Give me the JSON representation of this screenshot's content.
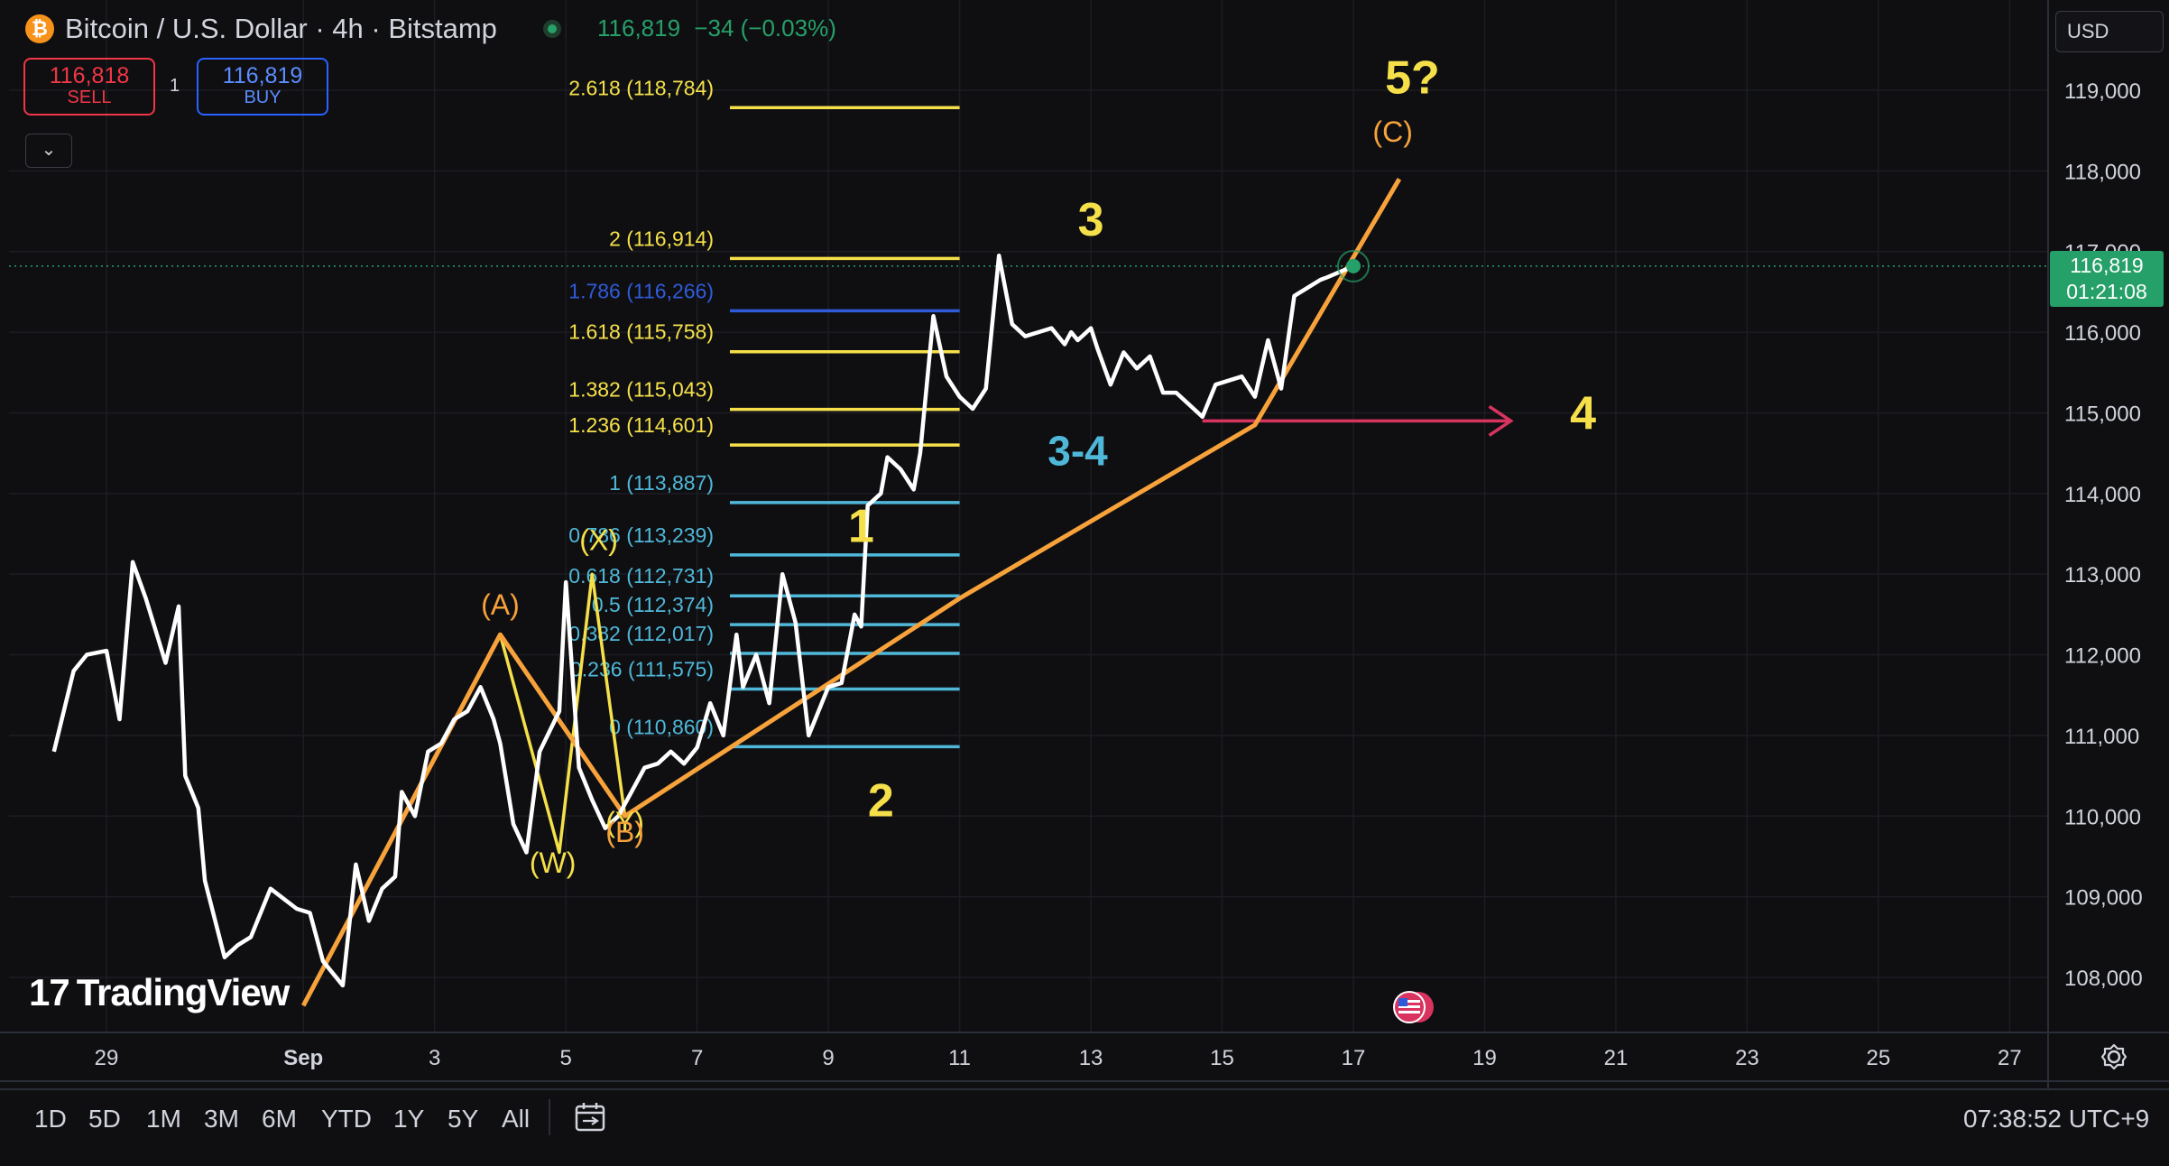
{
  "header": {
    "symbol_title": "Bitcoin / U.S. Dollar · 4h · Bitstamp",
    "last_price": "116,819",
    "change": "−34 (−0.03%)",
    "logo_glyph": "₿"
  },
  "trade": {
    "sell_price": "116,818",
    "sell_label": "SELL",
    "quantity": "1",
    "buy_price": "116,819",
    "buy_label": "BUY",
    "collapse_glyph": "⌄"
  },
  "currency": "USD",
  "price_tag": {
    "price": "116,819",
    "countdown": "01:21:08"
  },
  "colors": {
    "background": "#0f0f12",
    "price_line": "#ffffff",
    "orange": "#f7a23a",
    "yellow": "#f5e04a",
    "cyan": "#4fb8d8",
    "blue": "#2f5bd8",
    "magenta": "#d8345f",
    "green": "#26a069"
  },
  "chart_data": {
    "type": "line",
    "title": "Bitcoin / U.S. Dollar · 4h · Bitstamp",
    "ylim": [
      107550,
      119600
    ],
    "y_ticks": [
      108000,
      109000,
      110000,
      111000,
      112000,
      113000,
      114000,
      115000,
      116000,
      117000,
      118000,
      119000
    ],
    "y_tick_labels": [
      "108,000",
      "109,000",
      "110,000",
      "111,000",
      "112,000",
      "113,000",
      "114,000",
      "115,000",
      "116,000",
      "117,000",
      "118,000",
      "119,000"
    ],
    "x_ticks": [
      29,
      32,
      34,
      36,
      38,
      40,
      42,
      44,
      46,
      48,
      50,
      52,
      54,
      56,
      58
    ],
    "x_tick_labels": [
      "29",
      "Sep",
      "3",
      "5",
      "7",
      "9",
      "11",
      "13",
      "15",
      "17",
      "19",
      "21",
      "23",
      "25",
      "27"
    ],
    "xlim": [
      28.2,
      59.2
    ],
    "series": [
      {
        "role": "price",
        "x": [
          28.2,
          28.5,
          28.7,
          29.0,
          29.2,
          29.4,
          29.6,
          29.9,
          30.1,
          30.2,
          30.4,
          30.5,
          30.8,
          31.0,
          31.2,
          31.5,
          31.9,
          32.1,
          32.3,
          32.6,
          32.8,
          33.0,
          33.2,
          33.4,
          33.5,
          33.7,
          33.9,
          34.1,
          34.3,
          34.5,
          34.7,
          34.9,
          35.0,
          35.2,
          35.4,
          35.6,
          35.9,
          36.0,
          36.2,
          36.4,
          36.6,
          36.8,
          37.0,
          37.2,
          37.4,
          37.6,
          37.8,
          38.0,
          38.2,
          38.4,
          38.6,
          38.7,
          38.9,
          39.1,
          39.3,
          39.5,
          39.7,
          39.9,
          40.0,
          40.2,
          40.4,
          40.5,
          40.6,
          40.8,
          40.9,
          41.1,
          41.3,
          41.4,
          41.6,
          41.8,
          42.0,
          42.2,
          42.4,
          42.6,
          42.8,
          43.0,
          43.2,
          43.4,
          43.6,
          43.7,
          43.8,
          44.0,
          44.1,
          44.3,
          44.5,
          44.7,
          44.9,
          45.1,
          45.3,
          45.5,
          45.7,
          45.9,
          46.1,
          46.3,
          46.5,
          46.7,
          46.9,
          47.1,
          47.3,
          47.5,
          47.6,
          47.8,
          48.0
        ],
        "y": [
          110800,
          111800,
          112000,
          112050,
          111200,
          113150,
          112700,
          111900,
          112600,
          110500,
          110100,
          109200,
          108250,
          108400,
          108500,
          109100,
          108850,
          108800,
          108200,
          107900,
          109400,
          108700,
          109100,
          109250,
          110300,
          110000,
          110800,
          110900,
          111200,
          111300,
          111600,
          111200,
          110900,
          109900,
          109550,
          110800,
          111300,
          112900,
          110600,
          110200,
          109850,
          110000,
          110300,
          110600,
          110650,
          110800,
          110650,
          110850,
          111400,
          111000,
          112250,
          111600,
          112000,
          111400,
          113000,
          112400,
          111000,
          111400,
          111600,
          111650,
          112500,
          112350,
          113850,
          114000,
          114450,
          114300,
          114050,
          114500,
          116200,
          115450,
          115200,
          115050,
          115300,
          116950,
          116100,
          115950,
          116000,
          116050,
          115850,
          116000,
          115900,
          116050,
          115800,
          115350,
          115750,
          115550,
          115700,
          115250,
          115250,
          115100,
          114950,
          115350,
          115400,
          115450,
          115200,
          115900,
          115300,
          116450,
          116550,
          116650,
          116680,
          116750,
          116819
        ]
      },
      {
        "role": "wave-wxy",
        "x": [
          35.0,
          35.9,
          36.4,
          36.9
        ],
        "y": [
          112250,
          109550,
          113000,
          110000
        ]
      },
      {
        "role": "wave-abc-and-1-5",
        "x": [
          32.0,
          35.0,
          36.9,
          42.0,
          46.5,
          48.7
        ],
        "y": [
          107650,
          112250,
          110000,
          112700,
          114850,
          117900
        ]
      }
    ],
    "fibonacci_extension": {
      "x_range": [
        38.5,
        42.0
      ],
      "levels": [
        {
          "ratio": "2.618",
          "price": 118784,
          "label": "2.618 (118,784)",
          "color": "#f5e04a"
        },
        {
          "ratio": "2",
          "price": 116914,
          "label": "2 (116,914)",
          "color": "#f5e04a"
        },
        {
          "ratio": "1.786",
          "price": 116266,
          "label": "1.786 (116,266)",
          "color": "#2f5bd8"
        },
        {
          "ratio": "1.618",
          "price": 115758,
          "label": "1.618 (115,758)",
          "color": "#f5e04a"
        },
        {
          "ratio": "1.382",
          "price": 115043,
          "label": "1.382 (115,043)",
          "color": "#f5e04a"
        },
        {
          "ratio": "1.236",
          "price": 114601,
          "label": "1.236 (114,601)",
          "color": "#f5e04a"
        },
        {
          "ratio": "1",
          "price": 113887,
          "label": "1 (113,887)",
          "color": "#4fb8d8"
        },
        {
          "ratio": "0.786",
          "price": 113239,
          "label": "0.786 (113,239)",
          "color": "#4fb8d8"
        },
        {
          "ratio": "0.618",
          "price": 112731,
          "label": "0.618 (112,731)",
          "color": "#4fb8d8"
        },
        {
          "ratio": "0.5",
          "price": 112374,
          "label": "0.5 (112,374)",
          "color": "#4fb8d8"
        },
        {
          "ratio": "0.382",
          "price": 112017,
          "label": "0.382 (112,017)",
          "color": "#4fb8d8"
        },
        {
          "ratio": "0.236",
          "price": 111575,
          "label": "0.236 (111,575)",
          "color": "#4fb8d8"
        },
        {
          "ratio": "0",
          "price": 110860,
          "label": "0 (110,860)",
          "color": "#4fb8d8"
        }
      ]
    },
    "arrow": {
      "x": [
        45.7,
        50.4
      ],
      "price": 114900,
      "color": "#d8345f"
    },
    "current_marker": {
      "x": 48.0,
      "price": 116819
    },
    "annotations": [
      {
        "text": "(A)",
        "x": 35.0,
        "price": 112500,
        "color": "#f7a23a",
        "size": 32,
        "weight": "normal"
      },
      {
        "text": "(X)",
        "x": 36.5,
        "price": 113300,
        "color": "#f5e04a",
        "size": 32,
        "weight": "normal"
      },
      {
        "text": "(W)",
        "x": 35.8,
        "price": 109300,
        "color": "#f5e04a",
        "size": 32,
        "weight": "normal"
      },
      {
        "text": "(Y)",
        "x": 36.9,
        "price": 109800,
        "color": "#f5e04a",
        "size": 32,
        "weight": "normal"
      },
      {
        "text": "(B)",
        "x": 36.9,
        "price": 109680,
        "color": "#f7a23a",
        "size": 32,
        "weight": "normal"
      },
      {
        "text": "1",
        "x": 40.5,
        "price": 113400,
        "color": "#f5e04a",
        "size": 52,
        "weight": "bold"
      },
      {
        "text": "2",
        "x": 40.8,
        "price": 110000,
        "color": "#f5e04a",
        "size": 52,
        "weight": "bold"
      },
      {
        "text": "3",
        "x": 44.0,
        "price": 117200,
        "color": "#f5e04a",
        "size": 52,
        "weight": "bold"
      },
      {
        "text": "3-4",
        "x": 43.8,
        "price": 114350,
        "color": "#4fb8d8",
        "size": 46,
        "weight": "bold"
      },
      {
        "text": "4",
        "x": 51.5,
        "price": 114800,
        "color": "#f5e04a",
        "size": 52,
        "weight": "bold"
      },
      {
        "text": "5?",
        "x": 48.9,
        "price": 118960,
        "color": "#f5e04a",
        "size": 52,
        "weight": "bold"
      },
      {
        "text": "(C)",
        "x": 48.6,
        "price": 118360,
        "color": "#f7a23a",
        "size": 32,
        "weight": "normal"
      }
    ]
  },
  "watermark": "TradingView",
  "periods": [
    "1D",
    "5D",
    "1M",
    "3M",
    "6M",
    "YTD",
    "1Y",
    "5Y",
    "All"
  ],
  "clock": "07:38:52 UTC+9"
}
